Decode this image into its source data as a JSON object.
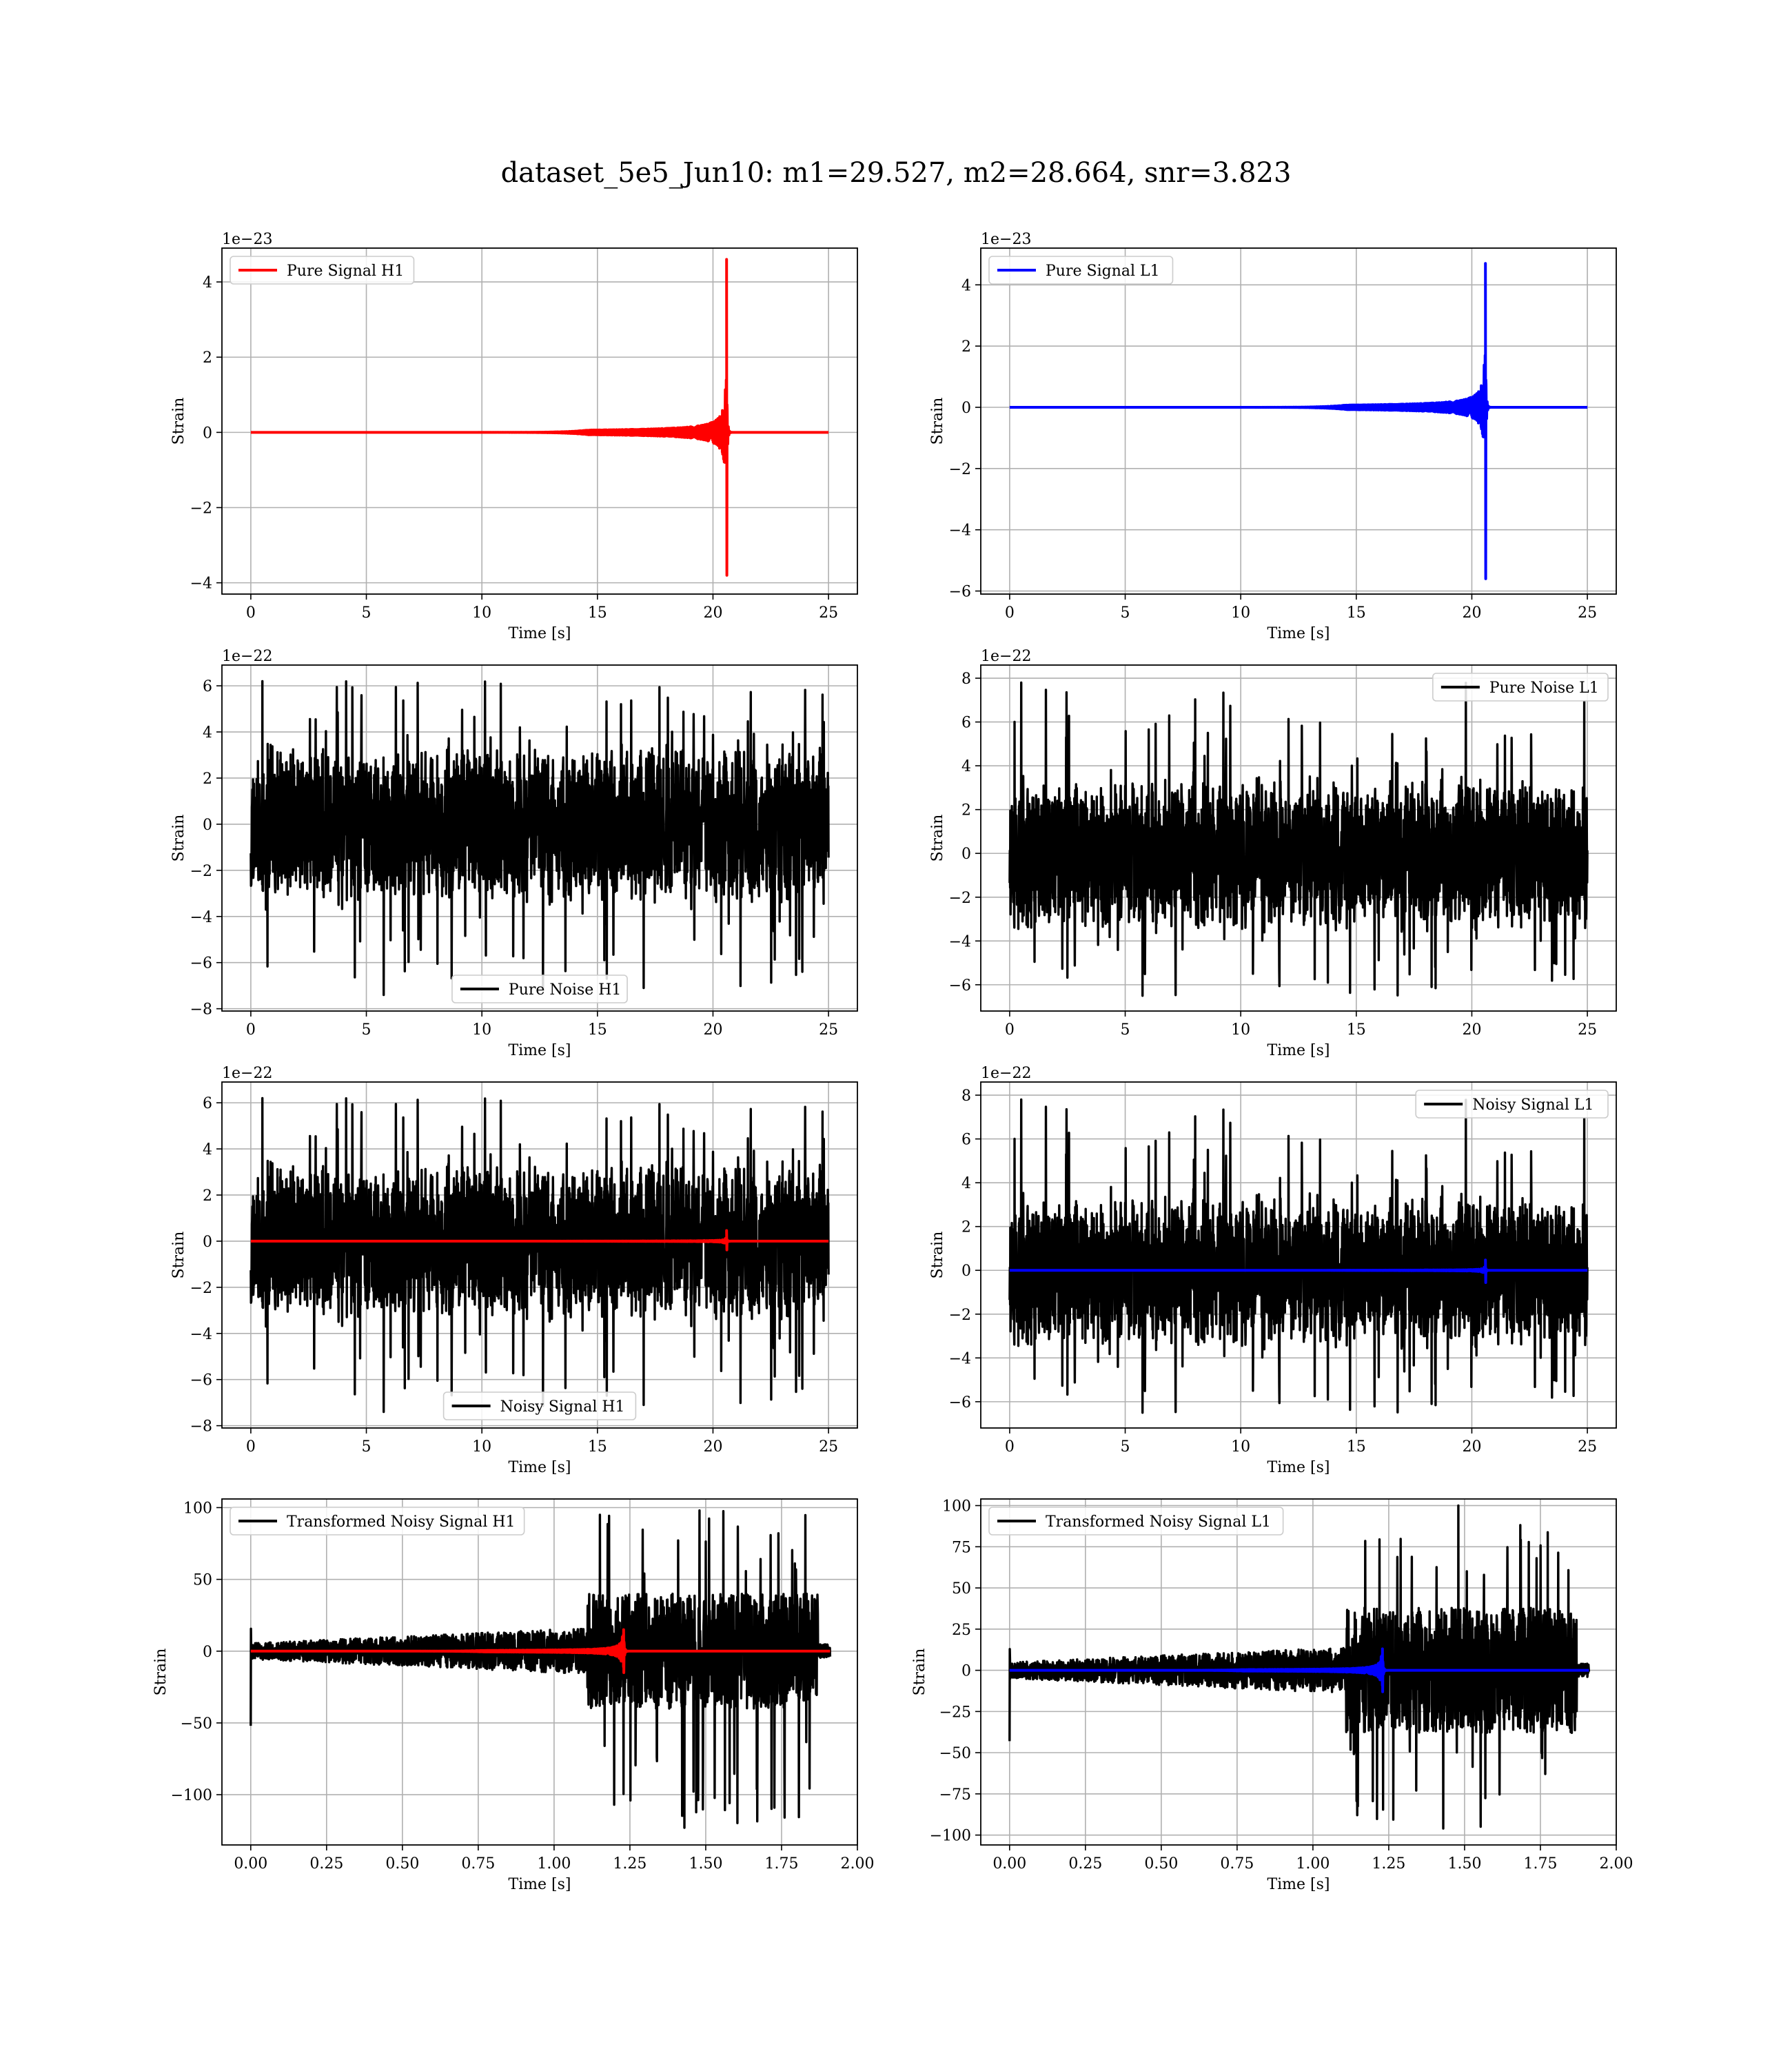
{
  "figure": {
    "title": "dataset_5e5_Jun10: m1=29.527, m2=28.664, snr=3.823"
  },
  "colors": {
    "red": "#ff0000",
    "blue": "#0000ff",
    "black": "#000000",
    "grid": "#b0b0b0"
  },
  "chart_data": [
    {
      "id": "pure-signal-h1",
      "type": "line",
      "xlabel": "Time [s]",
      "ylabel": "Strain",
      "offset_text": "1e−23",
      "xlim": [
        -1.25,
        26.25
      ],
      "ylim": [
        -4.3,
        4.9
      ],
      "xticks": [
        0,
        5,
        10,
        15,
        20,
        25
      ],
      "xtick_labels": [
        "0",
        "5",
        "10",
        "15",
        "20",
        "25"
      ],
      "yticks": [
        -4,
        -2,
        0,
        2,
        4
      ],
      "ytick_labels": [
        "−4",
        "−2",
        "0",
        "2",
        "4"
      ],
      "grid": true,
      "legend_position": "upper left",
      "series": [
        {
          "name": "Pure Signal H1",
          "color": "#ff0000",
          "kind": "chirp",
          "x_start": 0,
          "x_end": 25,
          "merger_time": 20.6,
          "peak_pos": 4.6,
          "peak_neg": -3.8,
          "envelope_max": 1.4
        }
      ]
    },
    {
      "id": "pure-signal-l1",
      "type": "line",
      "xlabel": "Time [s]",
      "ylabel": "Strain",
      "offset_text": "1e−23",
      "xlim": [
        -1.25,
        26.25
      ],
      "ylim": [
        -6.1,
        5.2
      ],
      "xticks": [
        0,
        5,
        10,
        15,
        20,
        25
      ],
      "xtick_labels": [
        "0",
        "5",
        "10",
        "15",
        "20",
        "25"
      ],
      "yticks": [
        -6,
        -4,
        -2,
        0,
        2,
        4
      ],
      "ytick_labels": [
        "−6",
        "−4",
        "−2",
        "0",
        "2",
        "4"
      ],
      "grid": true,
      "legend_position": "upper left",
      "series": [
        {
          "name": "Pure Signal L1",
          "color": "#0000ff",
          "kind": "chirp",
          "x_start": 0,
          "x_end": 25,
          "merger_time": 20.6,
          "peak_pos": 4.7,
          "peak_neg": -5.6,
          "envelope_max": 1.7
        }
      ]
    },
    {
      "id": "pure-noise-h1",
      "type": "line",
      "xlabel": "Time [s]",
      "ylabel": "Strain",
      "offset_text": "1e−22",
      "xlim": [
        -1.25,
        26.25
      ],
      "ylim": [
        -8.1,
        6.9
      ],
      "xticks": [
        0,
        5,
        10,
        15,
        20,
        25
      ],
      "xtick_labels": [
        "0",
        "5",
        "10",
        "15",
        "20",
        "25"
      ],
      "yticks": [
        -8,
        -6,
        -4,
        -2,
        0,
        2,
        4,
        6
      ],
      "ytick_labels": [
        "−8",
        "−6",
        "−4",
        "−2",
        "0",
        "2",
        "4",
        "6"
      ],
      "grid": true,
      "legend_position": "lower center",
      "series": [
        {
          "name": "Pure Noise H1",
          "color": "#000000",
          "kind": "noise",
          "x_start": 0,
          "x_end": 25,
          "band": [
            -3.6,
            3.6
          ],
          "max": 6.2,
          "min": -7.4,
          "seed": 11
        }
      ]
    },
    {
      "id": "pure-noise-l1",
      "type": "line",
      "xlabel": "Time [s]",
      "ylabel": "Strain",
      "offset_text": "1e−22",
      "xlim": [
        -1.25,
        26.25
      ],
      "ylim": [
        -7.2,
        8.6
      ],
      "xticks": [
        0,
        5,
        10,
        15,
        20,
        25
      ],
      "xtick_labels": [
        "0",
        "5",
        "10",
        "15",
        "20",
        "25"
      ],
      "yticks": [
        -6,
        -4,
        -2,
        0,
        2,
        4,
        6,
        8
      ],
      "ytick_labels": [
        "−6",
        "−4",
        "−2",
        "0",
        "2",
        "4",
        "6",
        "8"
      ],
      "grid": true,
      "legend_position": "upper right",
      "series": [
        {
          "name": "Pure Noise L1",
          "color": "#000000",
          "kind": "noise",
          "x_start": 0,
          "x_end": 25,
          "band": [
            -3.7,
            3.7
          ],
          "max": 7.8,
          "min": -6.5,
          "seed": 23
        }
      ]
    },
    {
      "id": "noisy-signal-h1",
      "type": "line",
      "xlabel": "Time [s]",
      "ylabel": "Strain",
      "offset_text": "1e−22",
      "xlim": [
        -1.25,
        26.25
      ],
      "ylim": [
        -8.1,
        6.9
      ],
      "xticks": [
        0,
        5,
        10,
        15,
        20,
        25
      ],
      "xtick_labels": [
        "0",
        "5",
        "10",
        "15",
        "20",
        "25"
      ],
      "yticks": [
        -8,
        -6,
        -4,
        -2,
        0,
        2,
        4,
        6
      ],
      "ytick_labels": [
        "−8",
        "−6",
        "−4",
        "−2",
        "0",
        "2",
        "4",
        "6"
      ],
      "grid": true,
      "legend_position": "lower center",
      "series": [
        {
          "name": "Noisy Signal H1",
          "color": "#000000",
          "kind": "noise",
          "x_start": 0,
          "x_end": 25,
          "band": [
            -3.6,
            3.6
          ],
          "max": 6.2,
          "min": -7.4,
          "seed": 11
        },
        {
          "color": "#ff0000",
          "kind": "chirp",
          "x_start": 0,
          "x_end": 25,
          "merger_time": 20.6,
          "peak_pos": 0.46,
          "peak_neg": -0.38,
          "envelope_max": 0.14
        }
      ]
    },
    {
      "id": "noisy-signal-l1",
      "type": "line",
      "xlabel": "Time [s]",
      "ylabel": "Strain",
      "offset_text": "1e−22",
      "xlim": [
        -1.25,
        26.25
      ],
      "ylim": [
        -7.2,
        8.6
      ],
      "xticks": [
        0,
        5,
        10,
        15,
        20,
        25
      ],
      "xtick_labels": [
        "0",
        "5",
        "10",
        "15",
        "20",
        "25"
      ],
      "yticks": [
        -6,
        -4,
        -2,
        0,
        2,
        4,
        6,
        8
      ],
      "ytick_labels": [
        "−6",
        "−4",
        "−2",
        "0",
        "2",
        "4",
        "6",
        "8"
      ],
      "grid": true,
      "legend_position": "upper right",
      "series": [
        {
          "name": "Noisy Signal L1",
          "color": "#000000",
          "kind": "noise",
          "x_start": 0,
          "x_end": 25,
          "band": [
            -3.7,
            3.7
          ],
          "max": 7.8,
          "min": -6.5,
          "seed": 23
        },
        {
          "color": "#0000ff",
          "kind": "chirp",
          "x_start": 0,
          "x_end": 25,
          "merger_time": 20.6,
          "peak_pos": 0.47,
          "peak_neg": -0.56,
          "envelope_max": 0.17
        }
      ]
    },
    {
      "id": "transformed-noisy-signal-h1",
      "type": "line",
      "xlabel": "Time [s]",
      "ylabel": "Strain",
      "offset_text": "",
      "xlim": [
        -0.095,
        2.0
      ],
      "ylim": [
        -135,
        106
      ],
      "xticks": [
        0,
        0.25,
        0.5,
        0.75,
        1.0,
        1.25,
        1.5,
        1.75,
        2.0
      ],
      "xtick_labels": [
        "0.00",
        "0.25",
        "0.50",
        "0.75",
        "1.00",
        "1.25",
        "1.50",
        "1.75",
        "2.00"
      ],
      "yticks": [
        -100,
        -50,
        0,
        50,
        100
      ],
      "ytick_labels": [
        "−100",
        "−50",
        "0",
        "50",
        "100"
      ],
      "grid": true,
      "legend_position": "upper left",
      "series": [
        {
          "name": "Transformed Noisy Signal H1",
          "color": "#000000",
          "kind": "whitened",
          "x_start": 0,
          "x_end": 1.91,
          "jump_time": 1.11,
          "end_active": 1.87,
          "quiet_amp": 8,
          "loud_band": 40,
          "max": 98,
          "min": -123,
          "start_spike": -52,
          "seed": 5
        },
        {
          "color": "#ff0000",
          "kind": "chirp",
          "x_start": 0,
          "x_end": 1.91,
          "merger_time": 1.23,
          "peak_pos": 15,
          "peak_neg": -15,
          "envelope_max": 12
        }
      ]
    },
    {
      "id": "transformed-noisy-signal-l1",
      "type": "line",
      "xlabel": "Time [s]",
      "ylabel": "Strain",
      "offset_text": "",
      "xlim": [
        -0.095,
        2.0
      ],
      "ylim": [
        -106,
        104
      ],
      "xticks": [
        0,
        0.25,
        0.5,
        0.75,
        1.0,
        1.25,
        1.5,
        1.75,
        2.0
      ],
      "xtick_labels": [
        "0.00",
        "0.25",
        "0.50",
        "0.75",
        "1.00",
        "1.25",
        "1.50",
        "1.75",
        "2.00"
      ],
      "yticks": [
        -100,
        -75,
        -50,
        -25,
        0,
        25,
        50,
        75,
        100
      ],
      "ytick_labels": [
        "−100",
        "−75",
        "−50",
        "−25",
        "0",
        "25",
        "50",
        "75",
        "100"
      ],
      "grid": true,
      "legend_position": "upper left",
      "series": [
        {
          "name": "Transformed Noisy Signal L1",
          "color": "#000000",
          "kind": "whitened",
          "x_start": 0,
          "x_end": 1.91,
          "jump_time": 1.11,
          "end_active": 1.87,
          "quiet_amp": 7,
          "loud_band": 38,
          "max": 100,
          "min": -96,
          "start_spike": -43,
          "seed": 9
        },
        {
          "color": "#0000ff",
          "kind": "chirp",
          "x_start": 0,
          "x_end": 1.91,
          "merger_time": 1.23,
          "peak_pos": 13,
          "peak_neg": -13,
          "envelope_max": 10
        }
      ]
    }
  ]
}
